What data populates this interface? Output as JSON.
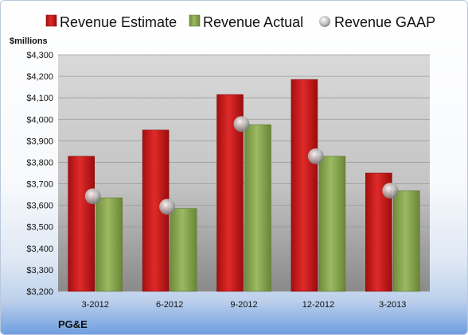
{
  "company": "PG&E",
  "chart_data": {
    "type": "bar",
    "ylabel": "$millions",
    "ylim": [
      3200,
      4300
    ],
    "ytick_step": 100,
    "categories": [
      "3-2012",
      "6-2012",
      "9-2012",
      "12-2012",
      "3-2013"
    ],
    "series": [
      {
        "name": "Revenue Estimate",
        "kind": "bar",
        "color": "#d42020",
        "values": [
          3828,
          3950,
          4115,
          4185,
          3750
        ]
      },
      {
        "name": "Revenue Actual",
        "kind": "bar",
        "color": "#8fad55",
        "values": [
          3635,
          3585,
          3975,
          3828,
          3668
        ]
      },
      {
        "name": "Revenue GAAP",
        "kind": "marker",
        "color": "#c8c8c8",
        "values": [
          3642,
          3593,
          3978,
          3828,
          3668
        ]
      }
    ],
    "legend": "top",
    "grid": true
  }
}
